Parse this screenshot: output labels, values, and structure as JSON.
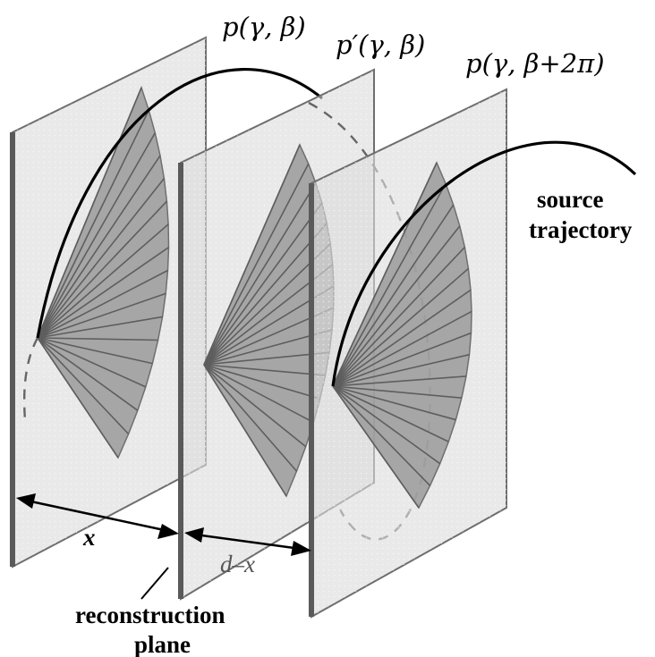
{
  "labels": {
    "p_first": "p(γ, β)",
    "p_prime": "p′(γ, β)",
    "p_shift": "p(γ, β+2π)",
    "source_line1": "source",
    "source_line2": "trajectory",
    "x": "x",
    "d_minus_x": "d–x",
    "recon_line1": "reconstruction",
    "recon_line2": "plane"
  }
}
